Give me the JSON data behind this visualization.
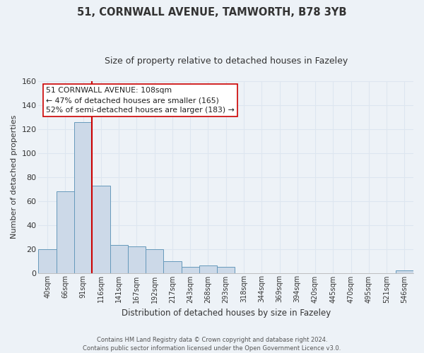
{
  "title_line1": "51, CORNWALL AVENUE, TAMWORTH, B78 3YB",
  "title_line2": "Size of property relative to detached houses in Fazeley",
  "xlabel": "Distribution of detached houses by size in Fazeley",
  "ylabel": "Number of detached properties",
  "bin_labels": [
    "40sqm",
    "66sqm",
    "91sqm",
    "116sqm",
    "141sqm",
    "167sqm",
    "192sqm",
    "217sqm",
    "243sqm",
    "268sqm",
    "293sqm",
    "318sqm",
    "344sqm",
    "369sqm",
    "394sqm",
    "420sqm",
    "445sqm",
    "470sqm",
    "495sqm",
    "521sqm",
    "546sqm"
  ],
  "bar_heights": [
    20,
    68,
    126,
    73,
    23,
    22,
    20,
    10,
    5,
    6,
    5,
    0,
    0,
    0,
    0,
    0,
    0,
    0,
    0,
    0,
    2
  ],
  "bar_color": "#ccd9e8",
  "bar_edge_color": "#6699bb",
  "vline_color": "#cc0000",
  "vline_index": 2.5,
  "ylim": [
    0,
    160
  ],
  "yticks": [
    0,
    20,
    40,
    60,
    80,
    100,
    120,
    140,
    160
  ],
  "annotation_title": "51 CORNWALL AVENUE: 108sqm",
  "annotation_line1": "← 47% of detached houses are smaller (165)",
  "annotation_line2": "52% of semi-detached houses are larger (183) →",
  "annotation_box_color": "#ffffff",
  "annotation_box_edge": "#cc0000",
  "footer_line1": "Contains HM Land Registry data © Crown copyright and database right 2024.",
  "footer_line2": "Contains public sector information licensed under the Open Government Licence v3.0.",
  "background_color": "#edf2f7",
  "grid_color": "#dde6f0"
}
